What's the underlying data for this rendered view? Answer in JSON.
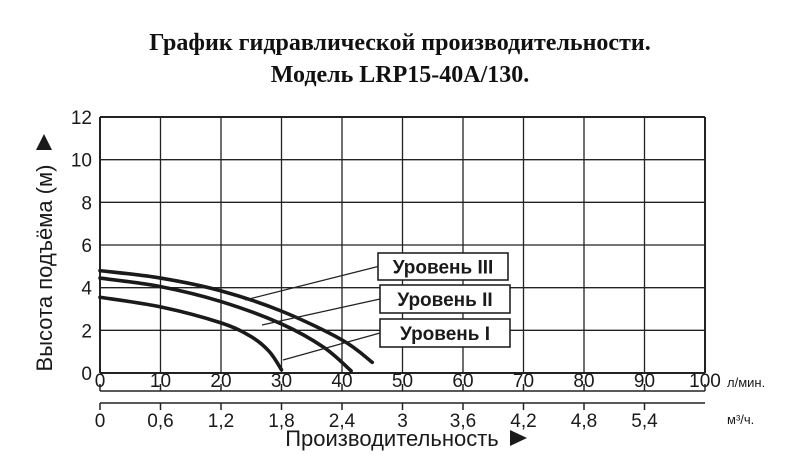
{
  "title_line1": "График гидравлической производительности.",
  "title_line2": "Модель LRP15-40A/130.",
  "chart_data": {
    "type": "line",
    "ylabel": "Высота подъёма (м)",
    "xlabel": "Производительность",
    "x_unit_primary": "л/мин.",
    "x_unit_secondary": "м³/ч.",
    "xlim": [
      0,
      100
    ],
    "ylim": [
      0,
      12
    ],
    "x_ticks": [
      "0",
      "10",
      "20",
      "30",
      "40",
      "50",
      "60",
      "70",
      "80",
      "90",
      "100"
    ],
    "x_ticks_secondary": [
      "0",
      "0,6",
      "1,2",
      "1,8",
      "2,4",
      "3",
      "3,6",
      "4,2",
      "4,8",
      "5,4"
    ],
    "y_ticks": [
      "0",
      "2",
      "4",
      "6",
      "8",
      "10",
      "12"
    ],
    "grid": true,
    "series": [
      {
        "name": "Уровень III",
        "points": [
          [
            0,
            4.8
          ],
          [
            10,
            4.45
          ],
          [
            20,
            3.85
          ],
          [
            30,
            2.9
          ],
          [
            40,
            1.55
          ],
          [
            45,
            0.5
          ]
        ]
      },
      {
        "name": "Уровень II",
        "points": [
          [
            0,
            4.45
          ],
          [
            10,
            4.05
          ],
          [
            20,
            3.35
          ],
          [
            30,
            2.3
          ],
          [
            37,
            1.2
          ],
          [
            41.5,
            0.1
          ]
        ]
      },
      {
        "name": "Уровень I",
        "points": [
          [
            0,
            3.55
          ],
          [
            10,
            3.1
          ],
          [
            20,
            2.35
          ],
          [
            25,
            1.7
          ],
          [
            28,
            1.0
          ],
          [
            30,
            0.15
          ]
        ]
      }
    ]
  }
}
